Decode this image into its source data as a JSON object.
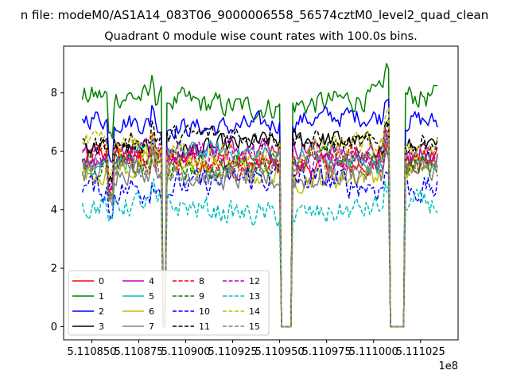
{
  "chart_data": {
    "type": "line",
    "suptitle": "n file: modeM0/AS1A14_083T06_9000006558_56574cztM0_level2_quad_clean",
    "title": "Quadrant 0 module wise count rates with 100.0s bins.",
    "xlabel": "",
    "ylabel": "",
    "x_offset_label": "1e8",
    "xlim": [
      5.110835,
      5.111045
    ],
    "ylim": [
      -0.45,
      9.6
    ],
    "xtick_values": [
      5.11085,
      5.110875,
      5.1109,
      5.110925,
      5.11095,
      5.110975,
      5.111,
      5.111025
    ],
    "xtick_labels": [
      "5.110850",
      "5.110875",
      "5.110900",
      "5.110925",
      "5.110950",
      "5.110975",
      "5.111000",
      "5.111025"
    ],
    "ytick_values": [
      0,
      2,
      4,
      6,
      8
    ],
    "ytick_labels": [
      "0",
      "2",
      "4",
      "6",
      "8"
    ],
    "grid": false,
    "legend_position": "lower-left",
    "gaps": [
      {
        "start": 5.1108875,
        "end": 5.110889
      },
      {
        "start": 5.1109505,
        "end": 5.1109565
      },
      {
        "start": 5.111009,
        "end": 5.1110165
      },
      {
        "start": 5.1110345,
        "end": 5.1110345
      }
    ],
    "spikes": [
      {
        "x": 5.1108825,
        "factor": 1.1
      },
      {
        "x": 5.111007,
        "factor": 1.12
      },
      {
        "x": 5.11086,
        "factor": 0.82
      }
    ],
    "series": [
      {
        "name": "0",
        "color": "#ff0000",
        "style": "solid",
        "base": 5.6,
        "noise": 0.35
      },
      {
        "name": "1",
        "color": "#008000",
        "style": "solid",
        "base": 7.7,
        "noise": 0.35
      },
      {
        "name": "2",
        "color": "#0000ff",
        "style": "solid",
        "base": 7.0,
        "noise": 0.3
      },
      {
        "name": "3",
        "color": "#000000",
        "style": "solid",
        "base": 6.2,
        "noise": 0.3
      },
      {
        "name": "4",
        "color": "#bf00bf",
        "style": "solid",
        "base": 6.0,
        "noise": 0.3
      },
      {
        "name": "5",
        "color": "#00bfbf",
        "style": "solid",
        "base": 5.8,
        "noise": 0.3
      },
      {
        "name": "6",
        "color": "#bfbf00",
        "style": "solid",
        "base": 5.3,
        "noise": 0.35
      },
      {
        "name": "7",
        "color": "#808080",
        "style": "solid",
        "base": 5.2,
        "noise": 0.35
      },
      {
        "name": "8",
        "color": "#ff0000",
        "style": "dashed",
        "base": 5.7,
        "noise": 0.35
      },
      {
        "name": "9",
        "color": "#008000",
        "style": "dashed",
        "base": 5.6,
        "noise": 0.35
      },
      {
        "name": "10",
        "color": "#0000ff",
        "style": "dashed",
        "base": 4.9,
        "noise": 0.4
      },
      {
        "name": "11",
        "color": "#000000",
        "style": "dashed",
        "base": 6.4,
        "noise": 0.3
      },
      {
        "name": "12",
        "color": "#bf00bf",
        "style": "dashed",
        "base": 5.8,
        "noise": 0.35
      },
      {
        "name": "13",
        "color": "#00bfbf",
        "style": "dashed",
        "base": 4.0,
        "noise": 0.35
      },
      {
        "name": "14",
        "color": "#bfbf00",
        "style": "dashed",
        "base": 6.0,
        "noise": 0.35
      },
      {
        "name": "15",
        "color": "#808080",
        "style": "dashed",
        "base": 5.4,
        "noise": 0.35
      }
    ]
  }
}
